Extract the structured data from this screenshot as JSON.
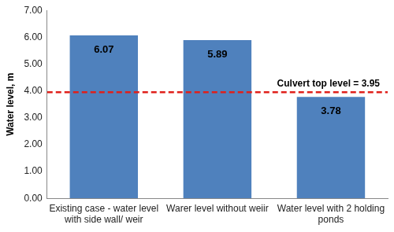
{
  "chart_data": {
    "type": "bar",
    "y_label": "Water level, m",
    "categories": [
      "Existing case - water level with side wall/ weir",
      "Warer level without weiir",
      "Water level with 2 holding ponds"
    ],
    "values": [
      6.07,
      5.89,
      3.78
    ],
    "color": "#4f81bd",
    "data_labels": true,
    "ylim": [
      0,
      7
    ],
    "yticks": [
      {
        "value": 0,
        "label": "0.00"
      },
      {
        "value": 1,
        "label": "1.00"
      },
      {
        "value": 2,
        "label": "2.00"
      },
      {
        "value": 3,
        "label": "3.00"
      },
      {
        "value": 4,
        "label": "4.00"
      },
      {
        "value": 5,
        "label": "5.00"
      },
      {
        "value": 6,
        "label": "6.00"
      },
      {
        "value": 7,
        "label": "7.00"
      }
    ],
    "grid": false,
    "annotations": [
      {
        "label": "Culvert top level = 3.95",
        "value": 3.95,
        "color": "#e0201b",
        "line_style": "dashed"
      }
    ]
  }
}
